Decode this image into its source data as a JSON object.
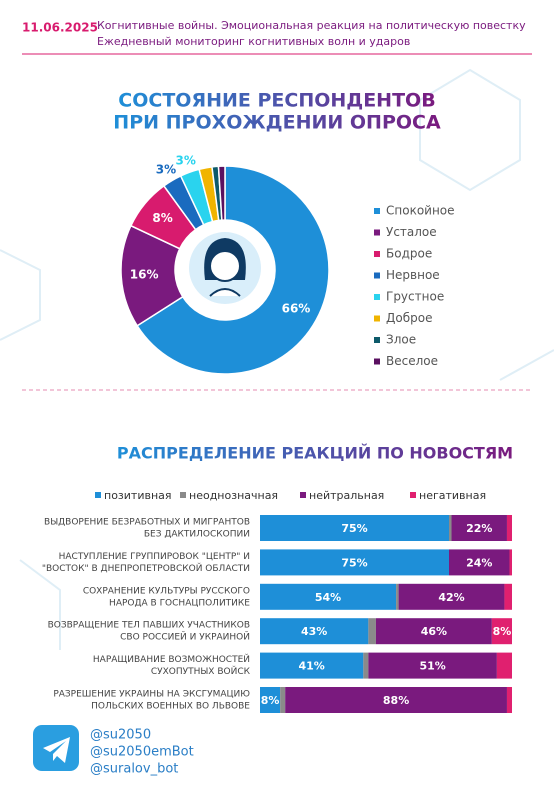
{
  "header": {
    "date": "11.06.2025",
    "lines": [
      "Когнитивные войны. Эмоциональная реакция на политическую повестку",
      "Ежедневный мониторинг когнитивных волн и ударов"
    ]
  },
  "chart_data": [
    {
      "type": "donut",
      "title": [
        "СОСТОЯНИЕ РЕСПОНДЕНТОВ",
        "ПРИ ПРОХОЖДЕНИИ ОПРОСА"
      ],
      "categories": [
        "Спокойное",
        "Усталое",
        "Бодрое",
        "Нервное",
        "Грустное",
        "Доброе",
        "Злое",
        "Веселое"
      ],
      "values": [
        66,
        16,
        8,
        3,
        3,
        2,
        1,
        1
      ],
      "value_labels": [
        "66%",
        "16%",
        "8%",
        "3%",
        "3%",
        null,
        null,
        null
      ],
      "colors": [
        "#1e8fd8",
        "#7a1a7e",
        "#d81b6e",
        "#1a6bbf",
        "#2ad3ee",
        "#f0b400",
        "#0d5a6a",
        "#5a1060"
      ]
    },
    {
      "type": "stacked-bar",
      "orientation": "horizontal",
      "title": "РАСПРЕДЕЛЕНИЕ РЕАКЦИЙ ПО НОВОСТЯМ",
      "categories": [
        [
          "ВЫДВОРЕНИЕ БЕЗРАБОТНЫХ И МИГРАНТОВ",
          "БЕЗ ДАКТИЛОСКОПИИ"
        ],
        [
          "НАСТУПЛЕНИЕ ГРУППИРОВОК \"ЦЕНТР\" И",
          "\"ВОСТОК\" В ДНЕПРОПЕТРОВСКОЙ ОБЛАСТИ"
        ],
        [
          "СОХРАНЕНИЕ КУЛЬТУРЫ РУССКОГО",
          "НАРОДА В ГОСНАЦПОЛИТИКЕ"
        ],
        [
          "ВОЗВРАЩЕНИЕ ТЕЛ ПАВШИХ УЧАСТНИКОВ",
          "СВО РОССИЕЙ И УКРАИНОЙ"
        ],
        [
          "НАРАЩИВАНИЕ ВОЗМОЖНОСТЕЙ",
          "СУХОПУТНЫХ ВОЙСК"
        ],
        [
          "РАЗРЕШЕНИЕ УКРАИНЫ НА ЭКСГУМАЦИЮ",
          "ПОЛЬСКИХ ВОЕННЫХ ВО ЛЬВОВЕ"
        ]
      ],
      "xlim": [
        0,
        100
      ],
      "series": [
        {
          "name": "позитивная",
          "color": "#1e8fd8",
          "values": [
            75,
            75,
            54,
            43,
            41,
            8
          ],
          "value_labels": [
            "75%",
            "75%",
            "54%",
            "43%",
            "41%",
            "8%"
          ]
        },
        {
          "name": "неоднозначная",
          "color": "#8a8a8a",
          "values": [
            1,
            0,
            1,
            3,
            2,
            2
          ],
          "value_labels": [
            null,
            null,
            null,
            null,
            null,
            null
          ]
        },
        {
          "name": "нейтральная",
          "color": "#7a1a7e",
          "values": [
            22,
            24,
            42,
            46,
            51,
            88
          ],
          "value_labels": [
            "22%",
            "24%",
            "42%",
            "46%",
            "51%",
            "88%"
          ]
        },
        {
          "name": "негативная",
          "color": "#e0206f",
          "values": [
            2,
            1,
            3,
            8,
            6,
            2
          ],
          "value_labels": [
            null,
            null,
            null,
            "8%",
            null,
            null
          ]
        }
      ]
    }
  ],
  "footer": {
    "handles": [
      "@su2050",
      "@su2050emBot",
      "@suralov_bot"
    ]
  }
}
